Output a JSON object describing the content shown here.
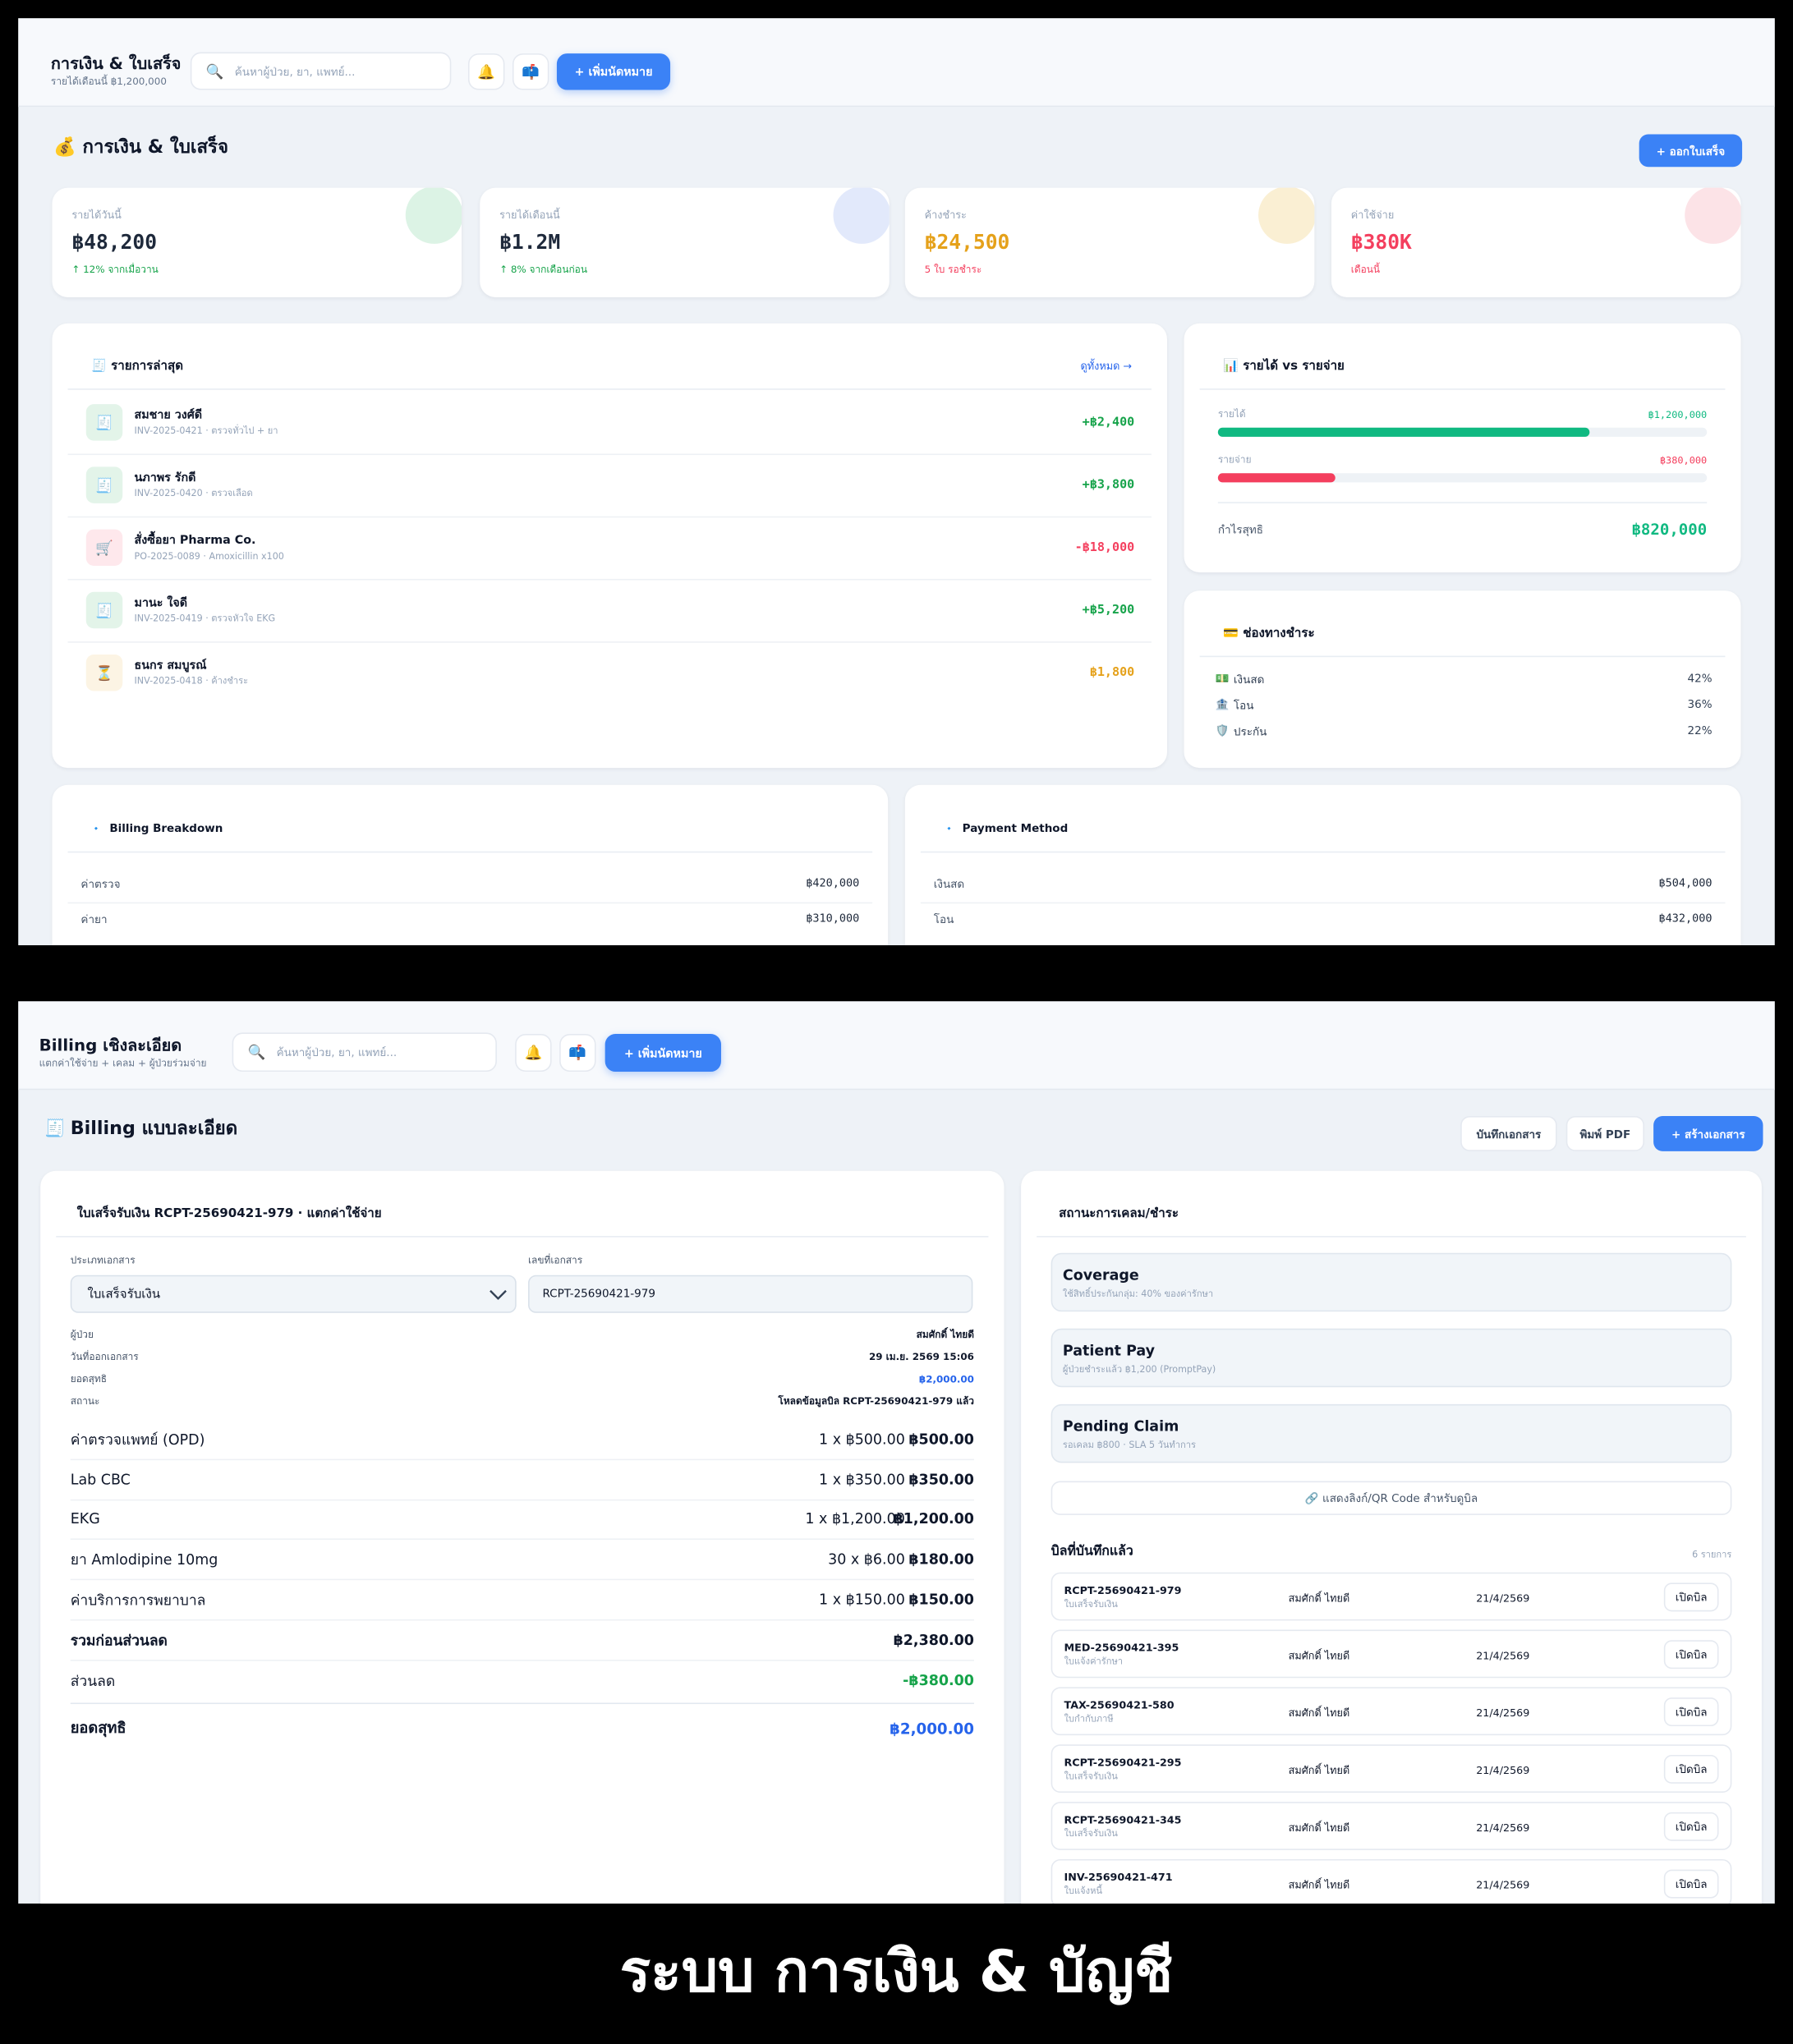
{
  "finance": {
    "header": {
      "title": "การเงิน & ใบเสร็จ",
      "subtitle": "รายได้เดือนนี้ ฿1,200,000",
      "search_icon": "🔍",
      "search_placeholder": "ค้นหาผู้ป่วย, ยา, แพทย์...",
      "bell": "🔔",
      "mail": "📫",
      "add_button": "+ เพิ่มนัดหมาย"
    },
    "page_title": "💰 การเงิน & ใบเสร็จ",
    "issue_button": "+ ออกใบเสร็จ",
    "stats": [
      {
        "label": "รายได้วันนี้",
        "value": "฿48,200",
        "note": "↑ 12% จากเมื่อวาน",
        "value_color": "#1e293b",
        "note_color": "#16a34a",
        "accent": "#dcf3e5"
      },
      {
        "label": "รายได้เดือนนี้",
        "value": "฿1.2M",
        "note": "↑ 8% จากเดือนก่อน",
        "value_color": "#1e293b",
        "note_color": "#16a34a",
        "accent": "#e2e9fb"
      },
      {
        "label": "ค้างชำระ",
        "value": "฿24,500",
        "note": "5 ใบ รอชำระ",
        "value_color": "#e5a11a",
        "note_color": "#f43f5e",
        "accent": "#faefd3"
      },
      {
        "label": "ค่าใช้จ่าย",
        "value": "฿380K",
        "note": "เดือนนี้",
        "value_color": "#f43f5e",
        "note_color": "#f43f5e",
        "accent": "#fce3e7"
      }
    ],
    "recent": {
      "title": "🧾 รายการล่าสุด",
      "link": "ดูทั้งหมด →",
      "items": [
        {
          "icon": "🧾",
          "name": "สมชาย วงศ์ดี",
          "detail": "INV-2025-0421 · ตรวจทั่วไป + ยา",
          "amount": "+฿2,400",
          "color": "#16a34a"
        },
        {
          "icon": "🧾",
          "name": "นภาพร รักดี",
          "detail": "INV-2025-0420 · ตรวจเลือด",
          "amount": "+฿3,800",
          "color": "#16a34a"
        },
        {
          "icon": "🛒",
          "name": "สั่งซื้อยา Pharma Co.",
          "detail": "PO-2025-0089 · Amoxicillin x100",
          "amount": "-฿18,000",
          "color": "#f43f5e"
        },
        {
          "icon": "🧾",
          "name": "มานะ ใจดี",
          "detail": "INV-2025-0419 · ตรวจหัวใจ EKG",
          "amount": "+฿5,200",
          "color": "#16a34a"
        },
        {
          "icon": "⏳",
          "name": "ธนกร สมบูรณ์",
          "detail": "INV-2025-0418 · ค้างชำระ",
          "amount": "฿1,800",
          "color": "#e5a11a"
        }
      ]
    },
    "income_vs_expense": {
      "title": "📊 รายได้ vs รายจ่าย",
      "rows": [
        {
          "label": "รายได้",
          "value": 1200000,
          "value_label": "฿1,200,000",
          "color": "#10b981"
        },
        {
          "label": "รายจ่าย",
          "value": 380000,
          "value_label": "฿380,000",
          "color": "#f43f5e"
        }
      ],
      "net_label": "กำไรสุทธิ",
      "net_value": "฿820,000"
    },
    "channels": {
      "title": "💳 ช่องทางชำระ",
      "rows": [
        {
          "icon": "💵",
          "label": "เงินสด",
          "share": "42%"
        },
        {
          "icon": "🏦",
          "label": "โอน",
          "share": "36%"
        },
        {
          "icon": "🛡️",
          "label": "ประกัน",
          "share": "22%"
        }
      ]
    },
    "breakdown": {
      "icon": "🔹",
      "title": "Billing Breakdown",
      "rows": [
        {
          "label": "ค่าตรวจ",
          "value": "฿420,000"
        },
        {
          "label": "ค่ายา",
          "value": "฿310,000"
        }
      ]
    },
    "payment_method": {
      "icon": "🔹",
      "title": "Payment Method",
      "rows": [
        {
          "label": "เงินสด",
          "value": "฿504,000"
        },
        {
          "label": "โอน",
          "value": "฿432,000"
        }
      ]
    }
  },
  "billing": {
    "header": {
      "title": "Billing เชิงละเอียด",
      "subtitle": "แตกค่าใช้จ่าย + เคลม + ผู้ป่วยร่วมจ่าย",
      "search_icon": "🔍",
      "search_placeholder": "ค้นหาผู้ป่วย, ยา, แพทย์...",
      "bell": "🔔",
      "mail": "📫",
      "add_button": "+ เพิ่มนัดหมาย"
    },
    "page_icon": "🧾",
    "page_title": "Billing แบบละเอียด",
    "actions": [
      "บันทึกเอกสาร",
      "พิมพ์ PDF",
      "+ สร้างเอกสาร"
    ],
    "document": {
      "title": "ใบเสร็จรับเงิน RCPT-25690421-979 · แตกค่าใช้จ่าย",
      "doc_type_label": "ประเภทเอกสาร",
      "doc_type": "ใบเสร็จรับเงิน",
      "doc_no_label": "เลขที่เอกสาร",
      "doc_no": "RCPT-25690421-979",
      "info": [
        {
          "label": "ผู้ป่วย",
          "value": "สมศักดิ์ ไทยดี",
          "color": "#0f172a"
        },
        {
          "label": "วันที่ออกเอกสาร",
          "value": "29 เม.ย. 2569 15:06",
          "color": "#0f172a"
        },
        {
          "label": "ยอดสุทธิ",
          "value": "฿2,000.00",
          "color": "#2563eb"
        },
        {
          "label": "สถานะ",
          "value": "โหลดข้อมูลบิล RCPT-25690421-979 แล้ว",
          "color": "#0f172a"
        }
      ],
      "items": [
        {
          "name": "ค่าตรวจแพทย์ (OPD)",
          "qty": "1 x ฿500.00",
          "amount": "฿500.00"
        },
        {
          "name": "Lab CBC",
          "qty": "1 x ฿350.00",
          "amount": "฿350.00"
        },
        {
          "name": "EKG",
          "qty": "1 x ฿1,200.00",
          "amount": "฿1,200.00"
        },
        {
          "name": "ยา Amlodipine 10mg",
          "qty": "30 x ฿6.00",
          "amount": "฿180.00"
        },
        {
          "name": "ค่าบริการการพยาบาล",
          "qty": "1 x ฿150.00",
          "amount": "฿150.00"
        }
      ],
      "subtotal": {
        "label": "รวมก่อนส่วนลด",
        "value": "฿2,380.00"
      },
      "discount": {
        "label": "ส่วนลด",
        "value": "-฿380.00"
      },
      "total": {
        "label": "ยอดสุทธิ",
        "value": "฿2,000.00"
      }
    },
    "status": {
      "title": "สถานะการเคลม/ชำระ",
      "boxes": [
        {
          "title": "Coverage",
          "detail": "ใช้สิทธิ์ประกันกลุ่ม: 40% ของค่ารักษา"
        },
        {
          "title": "Patient Pay",
          "detail": "ผู้ป่วยชำระแล้ว ฿1,200 (PromptPay)"
        },
        {
          "title": "Pending Claim",
          "detail": "รอเคลม ฿800 · SLA 5 วันทำการ"
        }
      ],
      "qr_button": "🔗 แสดงลิงก์/QR Code สำหรับดูบิล",
      "saved_title": "บิลที่บันทึกแล้ว",
      "saved_count": "6 รายการ",
      "bills": [
        {
          "code": "RCPT-25690421-979",
          "type": "ใบเสร็จรับเงิน",
          "patient": "สมศักดิ์ ไทยดี",
          "date": "21/4/2569",
          "action": "เปิดบิล"
        },
        {
          "code": "MED-25690421-395",
          "type": "ใบแจ้งค่ารักษา",
          "patient": "สมศักดิ์ ไทยดี",
          "date": "21/4/2569",
          "action": "เปิดบิล"
        },
        {
          "code": "TAX-25690421-580",
          "type": "ใบกำกับภาษี",
          "patient": "สมศักดิ์ ไทยดี",
          "date": "21/4/2569",
          "action": "เปิดบิล"
        },
        {
          "code": "RCPT-25690421-295",
          "type": "ใบเสร็จรับเงิน",
          "patient": "สมศักดิ์ ไทยดี",
          "date": "21/4/2569",
          "action": "เปิดบิล"
        },
        {
          "code": "RCPT-25690421-345",
          "type": "ใบเสร็จรับเงิน",
          "patient": "สมศักดิ์ ไทยดี",
          "date": "21/4/2569",
          "action": "เปิดบิล"
        },
        {
          "code": "INV-25690421-471",
          "type": "ใบแจ้งหนี้",
          "patient": "สมศักดิ์ ไทยดี",
          "date": "21/4/2569",
          "action": "เปิดบิล"
        }
      ]
    }
  },
  "caption": "ระบบ การเงิน & บัญชี"
}
